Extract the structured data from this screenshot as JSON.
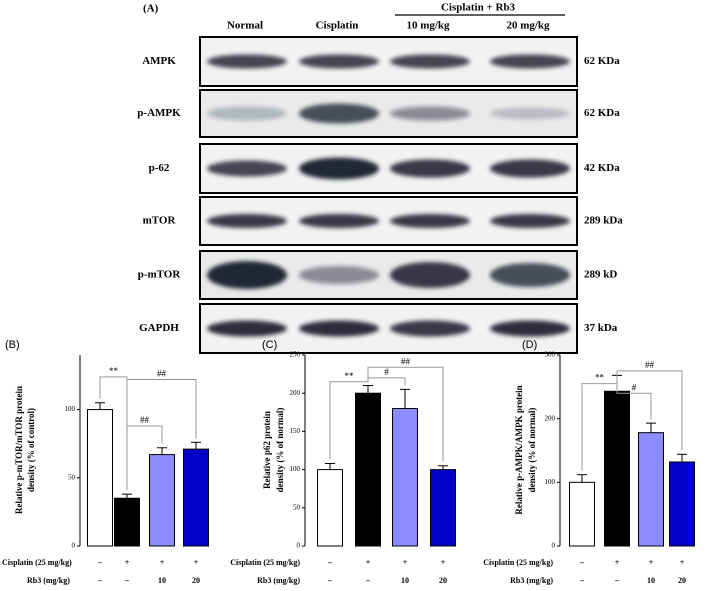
{
  "blot": {
    "panel_label": "(A)",
    "group_label": "Cisplatin + Rb3",
    "lanes": [
      "Normal",
      "Cisplatin",
      "10 mg/kg",
      "20 mg/kg"
    ],
    "rows": [
      {
        "protein": "AMPK",
        "size": "62 KDa"
      },
      {
        "protein": "p-AMPK",
        "size": "62 KDa"
      },
      {
        "protein": "p-62",
        "size": "42 KDa"
      },
      {
        "protein": "mTOR",
        "size": "289 kDa"
      },
      {
        "protein": "p-mTOR",
        "size": "289 kD"
      },
      {
        "protein": "GAPDH",
        "size": "37 kDa"
      }
    ]
  },
  "chart_data": [
    {
      "type": "bar",
      "panel_label": "(B)",
      "ylabel": [
        "Relative p-mTOR/mTOR protein",
        "density (% of control)"
      ],
      "categories": [
        null,
        null,
        null,
        null
      ],
      "values": [
        100,
        35,
        67,
        71
      ],
      "errors": [
        5,
        3,
        5,
        5
      ],
      "colors": [
        "#ffffff",
        "#000000",
        "#8c8cff",
        "#0000c8"
      ],
      "ylim": [
        0,
        140
      ],
      "yticks": [
        0,
        50,
        100
      ],
      "annotations": [
        "**",
        "##",
        "##"
      ],
      "condition_rows": [
        {
          "label": "Cisplatin (25 mg/kg)",
          "values": [
            "–",
            "+",
            "+",
            "+"
          ]
        },
        {
          "label": "Rb3 (mg/kg)",
          "values": [
            "–",
            "–",
            "10",
            "20"
          ]
        }
      ]
    },
    {
      "type": "bar",
      "panel_label": "(C)",
      "ylabel": [
        "Relative p62 protein",
        "density (% of normal)"
      ],
      "categories": [
        null,
        null,
        null,
        null
      ],
      "values": [
        100,
        200,
        180,
        100
      ],
      "errors": [
        8,
        10,
        25,
        5
      ],
      "colors": [
        "#ffffff",
        "#000000",
        "#8c8cff",
        "#0000c8"
      ],
      "ylim": [
        0,
        250
      ],
      "yticks": [
        0,
        50,
        100,
        150,
        200,
        250
      ],
      "annotations": [
        "**",
        "##",
        "#"
      ],
      "condition_rows": [
        {
          "label": "Cisplatin (25 mg/kg)",
          "values": [
            "–",
            "+",
            "+",
            "+"
          ]
        },
        {
          "label": "Rb3 (mg/kg)",
          "values": [
            "–",
            "–",
            "10",
            "20"
          ]
        }
      ]
    },
    {
      "type": "bar",
      "panel_label": "(D)",
      "ylabel": [
        "Relative p-AMPK/AMPK protein",
        "density (% of normal)"
      ],
      "categories": [
        null,
        null,
        null,
        null
      ],
      "values": [
        100,
        243,
        178,
        132
      ],
      "errors": [
        12,
        25,
        15,
        12
      ],
      "colors": [
        "#ffffff",
        "#000000",
        "#8c8cff",
        "#0000c8"
      ],
      "ylim": [
        0,
        300
      ],
      "yticks": [
        0,
        100,
        200,
        300
      ],
      "annotations": [
        "**",
        "##",
        "#"
      ],
      "condition_rows": [
        {
          "label": "Cisplatin (25 mg/kg)",
          "values": [
            "–",
            "+",
            "+",
            "+"
          ]
        },
        {
          "label": "Rb3 (mg/kg)",
          "values": [
            "–",
            "–",
            "10",
            "20"
          ]
        }
      ]
    }
  ]
}
